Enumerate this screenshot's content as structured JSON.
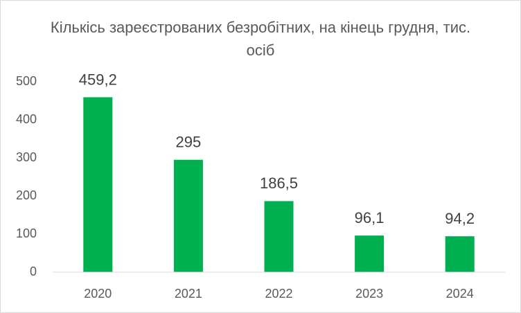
{
  "chart_data": {
    "type": "bar",
    "title": "Кількісь зареєстрованих безробітних, на кінець грудня, тис. осіб",
    "categories": [
      "2020",
      "2021",
      "2022",
      "2023",
      "2024"
    ],
    "values": [
      459.2,
      295,
      186.5,
      96.1,
      94.2
    ],
    "value_labels": [
      "459,2",
      "295",
      "186,5",
      "96,1",
      "94,2"
    ],
    "color": "#00b050",
    "ylim": [
      0,
      500
    ],
    "yticks": [
      0,
      100,
      200,
      300,
      400,
      500
    ],
    "grid": false
  }
}
